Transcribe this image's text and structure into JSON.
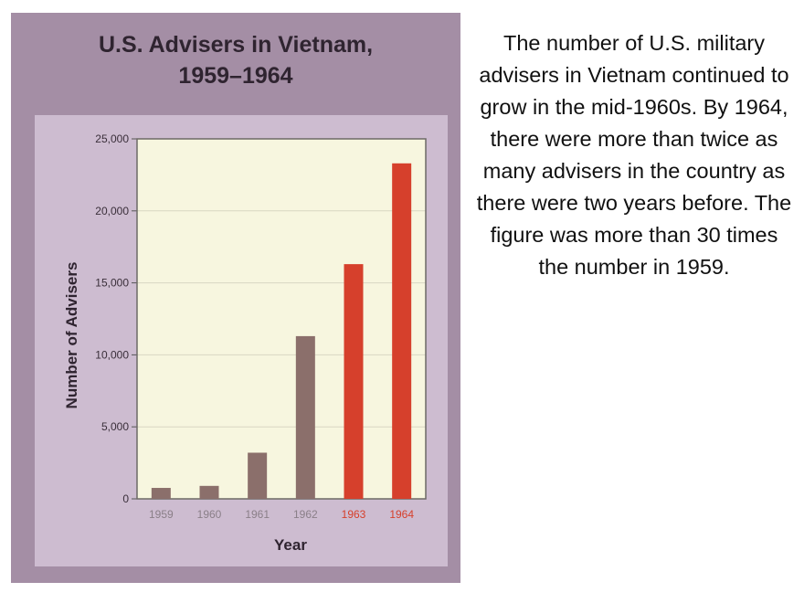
{
  "colors": {
    "panel": "#a48ea5",
    "inner": "#cdbcd0",
    "plot_bg": "#f7f6df",
    "bar_past": "#8b6f6b",
    "bar_recent": "#d6402c",
    "tick_label_past": "#8a7f88",
    "tick_label_recent": "#d6402c"
  },
  "caption": "The number of U.S. military advisers in Vietnam continued to grow in the mid-1960s. By 1964, there were more than twice as many advisers in the country as there were two years before. The figure was more than 30 times the number in 1959.",
  "chart_data": {
    "type": "bar",
    "title_line1": "U.S. Advisers in Vietnam,",
    "title_line2": "1959–1964",
    "xlabel": "Year",
    "ylabel": "Number of Advisers",
    "categories": [
      "1959",
      "1960",
      "1961",
      "1962",
      "1963",
      "1964"
    ],
    "values": [
      760,
      900,
      3205,
      11300,
      16300,
      23300
    ],
    "highlighted": [
      false,
      false,
      false,
      false,
      true,
      true
    ],
    "ylim": [
      0,
      25000
    ],
    "yticks": [
      0,
      5000,
      10000,
      15000,
      20000,
      25000
    ],
    "ytick_labels": [
      "0",
      "5,000",
      "10,000",
      "15,000",
      "20,000",
      "25,000"
    ],
    "grid": true
  }
}
